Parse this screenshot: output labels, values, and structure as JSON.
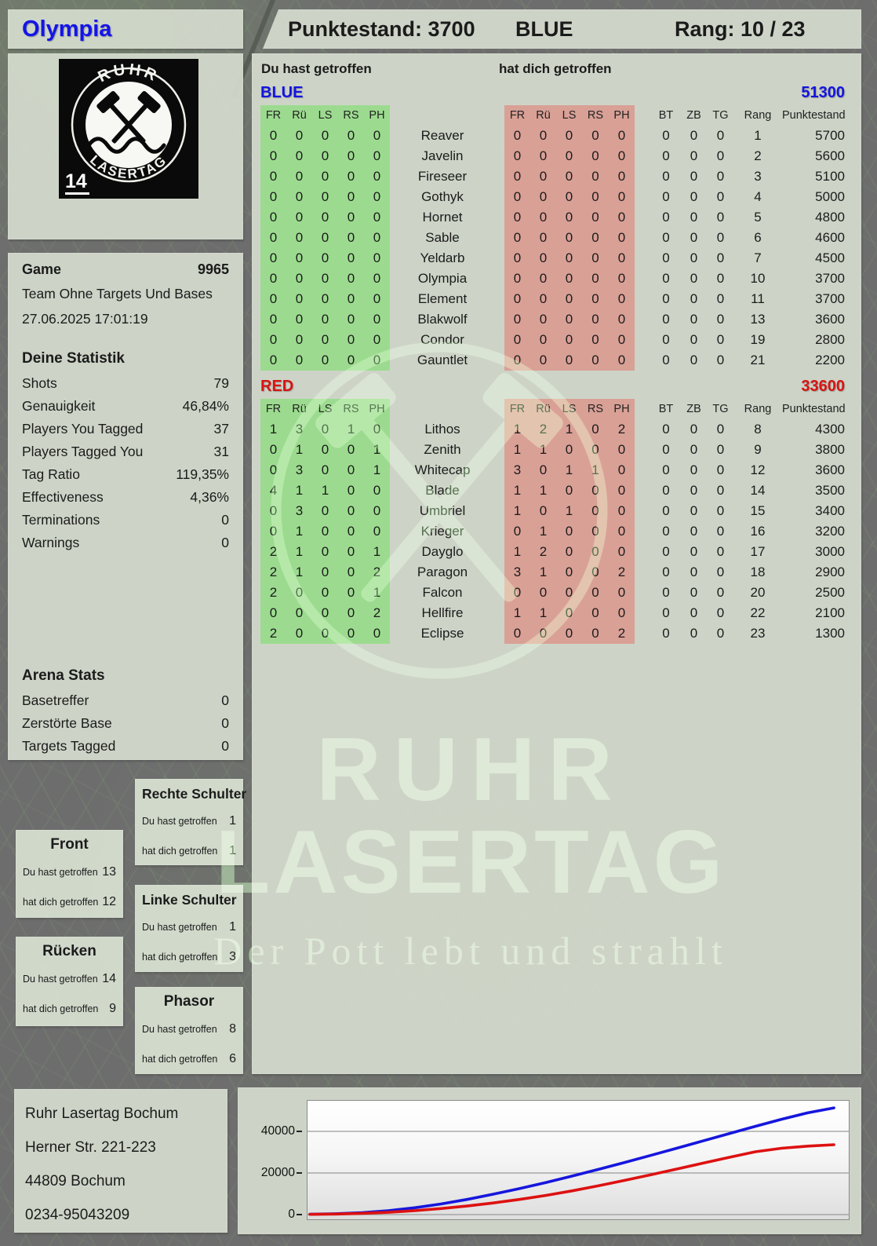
{
  "header": {
    "player": "Olympia",
    "score": "Punktestand: 3700",
    "team": "BLUE",
    "rank": "Rang: 10 / 23"
  },
  "logo": {
    "arc_top": "RUHR",
    "arc_bottom": "LASERTAG",
    "badge": "14"
  },
  "game": {
    "label": "Game",
    "id": "9965",
    "mode": "Team Ohne Targets Und Bases",
    "datetime": "27.06.2025 17:01:19"
  },
  "your_stats": {
    "title": "Deine Statistik",
    "rows": [
      {
        "label": "Shots",
        "value": "79"
      },
      {
        "label": "Genauigkeit",
        "value": "46,84%"
      },
      {
        "label": "Players You Tagged",
        "value": "37"
      },
      {
        "label": "Players Tagged You",
        "value": "31"
      },
      {
        "label": "Tag Ratio",
        "value": "119,35%"
      },
      {
        "label": "Effectiveness",
        "value": "4,36%"
      },
      {
        "label": "Terminations",
        "value": "0"
      },
      {
        "label": "Warnings",
        "value": "0"
      }
    ]
  },
  "arena_stats": {
    "title": "Arena Stats",
    "rows": [
      {
        "label": "Basetreffer",
        "value": "0"
      },
      {
        "label": "Zerstörte Base",
        "value": "0"
      },
      {
        "label": "Targets Tagged",
        "value": "0"
      }
    ]
  },
  "hit_labels": {
    "you_hit": "Du hast getroffen",
    "hit_you": "hat dich getroffen"
  },
  "body_parts": [
    {
      "name": "Front",
      "you_hit": "13",
      "hit_you": "12"
    },
    {
      "name": "Rücken",
      "you_hit": "14",
      "hit_you": "9"
    },
    {
      "name": "Rechte Schulter",
      "you_hit": "1",
      "hit_you": "1"
    },
    {
      "name": "Linke Schulter",
      "you_hit": "1",
      "hit_you": "3"
    },
    {
      "name": "Phasor",
      "you_hit": "8",
      "hit_you": "6"
    }
  ],
  "score_table": {
    "hit_cols": [
      "FR",
      "Rü",
      "LS",
      "RS",
      "PH"
    ],
    "extra_cols": [
      "BT",
      "ZB",
      "TG",
      "Rang",
      "Punktestand:"
    ],
    "teams": [
      {
        "name": "BLUE",
        "color": "#1414e0",
        "total": "51300",
        "rows": [
          {
            "player": "Reaver",
            "you_hit": [
              0,
              0,
              0,
              0,
              0
            ],
            "hit_you": [
              0,
              0,
              0,
              0,
              0
            ],
            "bt": 0,
            "zb": 0,
            "tg": 0,
            "rang": 1,
            "points": 5700
          },
          {
            "player": "Javelin",
            "you_hit": [
              0,
              0,
              0,
              0,
              0
            ],
            "hit_you": [
              0,
              0,
              0,
              0,
              0
            ],
            "bt": 0,
            "zb": 0,
            "tg": 0,
            "rang": 2,
            "points": 5600
          },
          {
            "player": "Fireseer",
            "you_hit": [
              0,
              0,
              0,
              0,
              0
            ],
            "hit_you": [
              0,
              0,
              0,
              0,
              0
            ],
            "bt": 0,
            "zb": 0,
            "tg": 0,
            "rang": 3,
            "points": 5100
          },
          {
            "player": "Gothyk",
            "you_hit": [
              0,
              0,
              0,
              0,
              0
            ],
            "hit_you": [
              0,
              0,
              0,
              0,
              0
            ],
            "bt": 0,
            "zb": 0,
            "tg": 0,
            "rang": 4,
            "points": 5000
          },
          {
            "player": "Hornet",
            "you_hit": [
              0,
              0,
              0,
              0,
              0
            ],
            "hit_you": [
              0,
              0,
              0,
              0,
              0
            ],
            "bt": 0,
            "zb": 0,
            "tg": 0,
            "rang": 5,
            "points": 4800
          },
          {
            "player": "Sable",
            "you_hit": [
              0,
              0,
              0,
              0,
              0
            ],
            "hit_you": [
              0,
              0,
              0,
              0,
              0
            ],
            "bt": 0,
            "zb": 0,
            "tg": 0,
            "rang": 6,
            "points": 4600
          },
          {
            "player": "Yeldarb",
            "you_hit": [
              0,
              0,
              0,
              0,
              0
            ],
            "hit_you": [
              0,
              0,
              0,
              0,
              0
            ],
            "bt": 0,
            "zb": 0,
            "tg": 0,
            "rang": 7,
            "points": 4500
          },
          {
            "player": "Olympia",
            "you_hit": [
              0,
              0,
              0,
              0,
              0
            ],
            "hit_you": [
              0,
              0,
              0,
              0,
              0
            ],
            "bt": 0,
            "zb": 0,
            "tg": 0,
            "rang": 10,
            "points": 3700
          },
          {
            "player": "Element",
            "you_hit": [
              0,
              0,
              0,
              0,
              0
            ],
            "hit_you": [
              0,
              0,
              0,
              0,
              0
            ],
            "bt": 0,
            "zb": 0,
            "tg": 0,
            "rang": 11,
            "points": 3700
          },
          {
            "player": "Blakwolf",
            "you_hit": [
              0,
              0,
              0,
              0,
              0
            ],
            "hit_you": [
              0,
              0,
              0,
              0,
              0
            ],
            "bt": 0,
            "zb": 0,
            "tg": 0,
            "rang": 13,
            "points": 3600
          },
          {
            "player": "Condor",
            "you_hit": [
              0,
              0,
              0,
              0,
              0
            ],
            "hit_you": [
              0,
              0,
              0,
              0,
              0
            ],
            "bt": 0,
            "zb": 0,
            "tg": 0,
            "rang": 19,
            "points": 2800
          },
          {
            "player": "Gauntlet",
            "you_hit": [
              0,
              0,
              0,
              0,
              0
            ],
            "hit_you": [
              0,
              0,
              0,
              0,
              0
            ],
            "bt": 0,
            "zb": 0,
            "tg": 0,
            "rang": 21,
            "points": 2200
          }
        ]
      },
      {
        "name": "RED",
        "color": "#d81414",
        "total": "33600",
        "rows": [
          {
            "player": "Lithos",
            "you_hit": [
              1,
              3,
              0,
              1,
              0
            ],
            "hit_you": [
              1,
              2,
              1,
              0,
              2
            ],
            "bt": 0,
            "zb": 0,
            "tg": 0,
            "rang": 8,
            "points": 4300
          },
          {
            "player": "Zenith",
            "you_hit": [
              0,
              1,
              0,
              0,
              1
            ],
            "hit_you": [
              1,
              1,
              0,
              0,
              0
            ],
            "bt": 0,
            "zb": 0,
            "tg": 0,
            "rang": 9,
            "points": 3800
          },
          {
            "player": "Whitecap",
            "you_hit": [
              0,
              3,
              0,
              0,
              1
            ],
            "hit_you": [
              3,
              0,
              1,
              1,
              0
            ],
            "bt": 0,
            "zb": 0,
            "tg": 0,
            "rang": 12,
            "points": 3600
          },
          {
            "player": "Blade",
            "you_hit": [
              4,
              1,
              1,
              0,
              0
            ],
            "hit_you": [
              1,
              1,
              0,
              0,
              0
            ],
            "bt": 0,
            "zb": 0,
            "tg": 0,
            "rang": 14,
            "points": 3500
          },
          {
            "player": "Umbriel",
            "you_hit": [
              0,
              3,
              0,
              0,
              0
            ],
            "hit_you": [
              1,
              0,
              1,
              0,
              0
            ],
            "bt": 0,
            "zb": 0,
            "tg": 0,
            "rang": 15,
            "points": 3400
          },
          {
            "player": "Krieger",
            "you_hit": [
              0,
              1,
              0,
              0,
              0
            ],
            "hit_you": [
              0,
              1,
              0,
              0,
              0
            ],
            "bt": 0,
            "zb": 0,
            "tg": 0,
            "rang": 16,
            "points": 3200
          },
          {
            "player": "Dayglo",
            "you_hit": [
              2,
              1,
              0,
              0,
              1
            ],
            "hit_you": [
              1,
              2,
              0,
              0,
              0
            ],
            "bt": 0,
            "zb": 0,
            "tg": 0,
            "rang": 17,
            "points": 3000
          },
          {
            "player": "Paragon",
            "you_hit": [
              2,
              1,
              0,
              0,
              2
            ],
            "hit_you": [
              3,
              1,
              0,
              0,
              2
            ],
            "bt": 0,
            "zb": 0,
            "tg": 0,
            "rang": 18,
            "points": 2900
          },
          {
            "player": "Falcon",
            "you_hit": [
              2,
              0,
              0,
              0,
              1
            ],
            "hit_you": [
              0,
              0,
              0,
              0,
              0
            ],
            "bt": 0,
            "zb": 0,
            "tg": 0,
            "rang": 20,
            "points": 2500
          },
          {
            "player": "Hellfire",
            "you_hit": [
              0,
              0,
              0,
              0,
              2
            ],
            "hit_you": [
              1,
              1,
              0,
              0,
              0
            ],
            "bt": 0,
            "zb": 0,
            "tg": 0,
            "rang": 22,
            "points": 2100
          },
          {
            "player": "Eclipse",
            "you_hit": [
              2,
              0,
              0,
              0,
              0
            ],
            "hit_you": [
              0,
              0,
              0,
              0,
              2
            ],
            "bt": 0,
            "zb": 0,
            "tg": 0,
            "rang": 23,
            "points": 1300
          }
        ]
      }
    ]
  },
  "address": {
    "lines": [
      "Ruhr Lasertag Bochum",
      "Herner Str. 221-223",
      "44809 Bochum",
      "0234-95043209"
    ]
  },
  "watermark": {
    "line1": "RUHR",
    "line2": "LASERTAG",
    "slogan": "Der Pott lebt und strahlt"
  },
  "chart_data": {
    "type": "line",
    "title": "",
    "xlabel": "",
    "ylabel": "",
    "yticks": [
      "0",
      "20000",
      "40000"
    ],
    "ylim": [
      0,
      55000
    ],
    "grid": true,
    "legend": false,
    "series": [
      {
        "name": "BLUE",
        "color": "#1616dd",
        "values": [
          200,
          400,
          900,
          1900,
          3300,
          5100,
          7300,
          9800,
          12500,
          15400,
          18500,
          21700,
          25000,
          28400,
          31900,
          35400,
          38900,
          42400,
          45800,
          48900,
          51300
        ]
      },
      {
        "name": "RED",
        "color": "#dd1111",
        "values": [
          100,
          250,
          600,
          1100,
          1900,
          2900,
          4100,
          5600,
          7300,
          9200,
          11400,
          13800,
          16400,
          19100,
          21900,
          24700,
          27500,
          30200,
          31900,
          32900,
          33600
        ]
      }
    ]
  }
}
